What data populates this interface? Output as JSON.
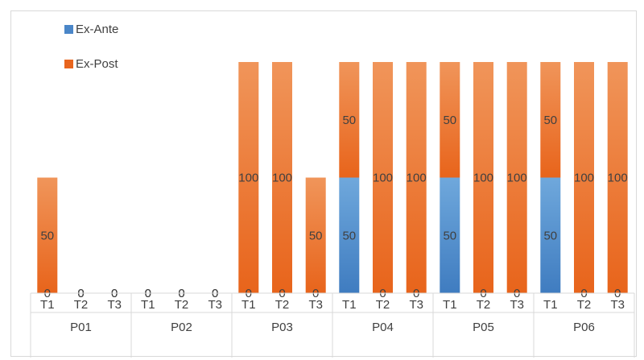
{
  "chart_data": {
    "type": "bar",
    "stacked": true,
    "groups": [
      "P01",
      "P02",
      "P03",
      "P04",
      "P05",
      "P06"
    ],
    "subcategories": [
      "T1",
      "T2",
      "T3"
    ],
    "categories": [
      "P01-T1",
      "P01-T2",
      "P01-T3",
      "P02-T1",
      "P02-T2",
      "P02-T3",
      "P03-T1",
      "P03-T2",
      "P03-T3",
      "P04-T1",
      "P04-T2",
      "P04-T3",
      "P05-T1",
      "P05-T2",
      "P05-T3",
      "P06-T1",
      "P06-T2",
      "P06-T3"
    ],
    "series": [
      {
        "name": "Ex-Ante",
        "color": "#4a86c8",
        "values": [
          0,
          0,
          0,
          0,
          0,
          0,
          0,
          0,
          0,
          50,
          0,
          0,
          50,
          0,
          0,
          50,
          0,
          0
        ],
        "labels": [
          "0",
          "0",
          "0",
          "0",
          "0",
          "0",
          "0",
          "0",
          "0",
          "50",
          "0",
          "0",
          "50",
          "0",
          "0",
          "50",
          "0",
          "0"
        ]
      },
      {
        "name": "Ex-Post",
        "color": "#e8651e",
        "values": [
          50,
          0,
          0,
          0,
          0,
          0,
          100,
          100,
          50,
          50,
          100,
          100,
          50,
          100,
          100,
          50,
          100,
          100
        ],
        "labels": [
          "50",
          "0",
          "0",
          "0",
          "0",
          "0",
          "100",
          "100",
          "50",
          "50",
          "100",
          "100",
          "50",
          "100",
          "100",
          "50",
          "100",
          "100"
        ]
      }
    ],
    "ylim": [
      0,
      100
    ],
    "grid": false,
    "legend_position": "top-left",
    "title": "",
    "xlabel": "",
    "ylabel": ""
  }
}
